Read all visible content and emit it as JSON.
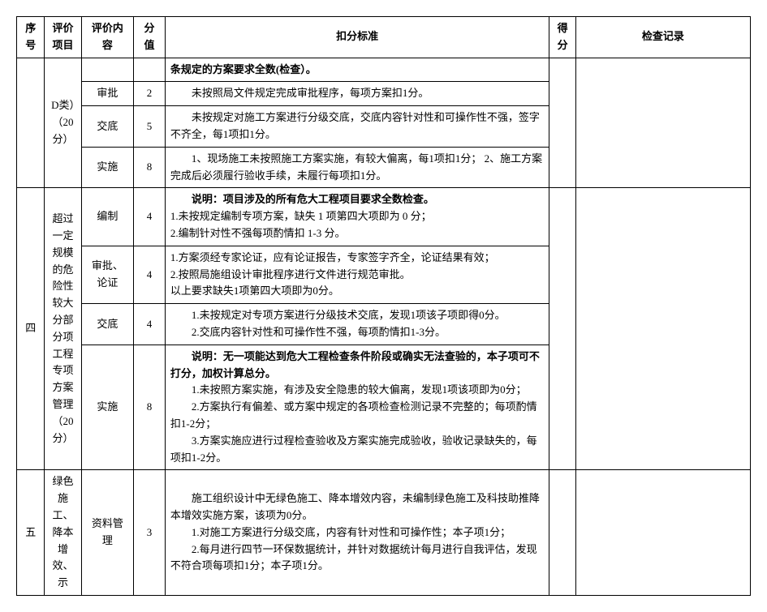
{
  "headers": {
    "seq": "序号",
    "item": "评价项目",
    "content": "评价内容",
    "score": "分值",
    "standard": "扣分标准",
    "got": "得分",
    "record": "检查记录"
  },
  "section3": {
    "item_suffix": "D类）（20分）",
    "rows": [
      {
        "content": "",
        "score": "",
        "standard": "条规定的方案要求全数(检查）。",
        "bold": true
      },
      {
        "content": "审批",
        "score": "2",
        "standard": "未按照局文件规定完成审批程序，每项方案扣1分。"
      },
      {
        "content": "交底",
        "score": "5",
        "standard": "未按规定对施工方案进行分级交底，交底内容针对性和可操作性不强，签字不齐全，每1项扣1分。"
      },
      {
        "content": "实施",
        "score": "8",
        "standard": "1、现场施工未按照施工方案实施，有较大偏离，每1项扣1分；\n2、施工方案完成后必须履行验收手续，未履行每项扣1分。"
      }
    ]
  },
  "section4": {
    "seq": "四",
    "item": "超过一定规模的危险性较大分部分项工程专项方案管理（20分）",
    "rows": [
      {
        "content": "编制",
        "score": "4",
        "standard_parts": [
          {
            "text": "说明：项目涉及的所有危大工程项目要求全数检查。",
            "bold": true
          },
          {
            "text": "1.未按规定编制专项方案，缺失 1 项第四大项即为 0 分；"
          },
          {
            "text": "2.编制针对性不强每项酌情扣 1-3 分。"
          }
        ]
      },
      {
        "content": "审批、论证",
        "score": "4",
        "standard_parts": [
          {
            "text": "1.方案须经专家论证，应有论证报告，专家签字齐全，论证结果有效；"
          },
          {
            "text": "2.按照局施组设计审批程序进行文件进行规范审批。"
          },
          {
            "text": "以上要求缺失1项第四大项即为0分。"
          }
        ]
      },
      {
        "content": "交底",
        "score": "4",
        "standard_parts": [
          {
            "text": "1.未按规定对专项方案进行分级技术交底，发现1项该子项即得0分。"
          },
          {
            "text": "2.交底内容针对性和可操作性不强，每项酌情扣1-3分。"
          }
        ]
      },
      {
        "content": "实施",
        "score": "8",
        "standard_parts": [
          {
            "text": "说明：无一项能达到危大工程检查条件阶段或确实无法查验的，本子项可不打分，加权计算总分。",
            "bold": true
          },
          {
            "text": "1.未按照方案实施，有涉及安全隐患的较大偏离，发现1项该项即为0分；"
          },
          {
            "text": "2.方案执行有偏差、或方案中规定的各项检查检测记录不完整的；每项酌情扣1-2分；"
          },
          {
            "text": "3.方案实施应进行过程检查验收及方案实施完成验收，验收记录缺失的，每项扣1-2分。"
          }
        ]
      }
    ]
  },
  "section5": {
    "seq": "五",
    "item": "绿色施工、降本增效、示",
    "rows": [
      {
        "content": "资料管理",
        "score": "3",
        "standard_parts": [
          {
            "text": "施工组织设计中无绿色施工、降本增效内容，未编制绿色施工及科技助推降本增效实施方案，该项为0分。"
          },
          {
            "text": "1.对施工方案进行分级交底，内容有针对性和可操作性；本子项1分；"
          },
          {
            "text": "2.每月进行四节一环保数据统计，并针对数据统计每月进行自我评估，发现不符合项每项扣1分；本子项1分。"
          }
        ]
      }
    ]
  }
}
